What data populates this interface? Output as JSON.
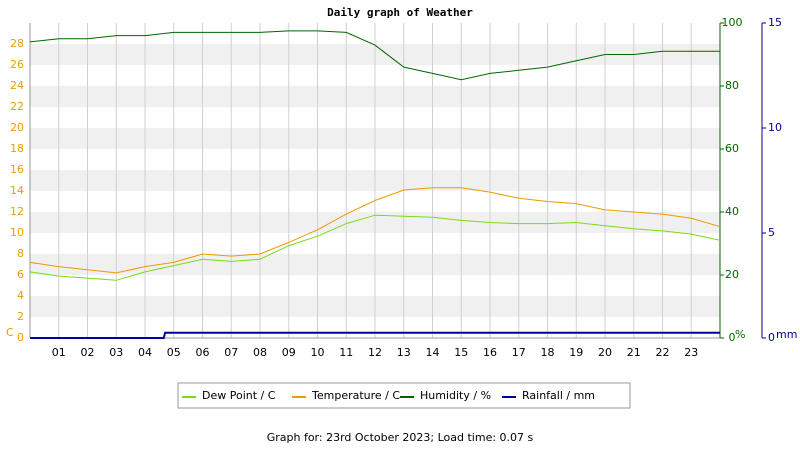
{
  "chart_data": {
    "type": "line",
    "title": "Daily graph of Weather",
    "footer": "Graph for: 23rd October 2023; Load time: 0.07 s",
    "ylabel": "C",
    "y2label": "%",
    "y3label": "mm",
    "x": [
      0,
      1,
      2,
      3,
      4,
      5,
      6,
      7,
      8,
      9,
      10,
      11,
      12,
      13,
      14,
      15,
      16,
      17,
      18,
      19,
      20,
      21,
      22,
      23,
      24
    ],
    "xlim": [
      0,
      24
    ],
    "xticks": [
      {
        "value": 1,
        "label": "01"
      },
      {
        "value": 2,
        "label": "02"
      },
      {
        "value": 3,
        "label": "03"
      },
      {
        "value": 4,
        "label": "04"
      },
      {
        "value": 5,
        "label": "05"
      },
      {
        "value": 6,
        "label": "06"
      },
      {
        "value": 7,
        "label": "07"
      },
      {
        "value": 8,
        "label": "08"
      },
      {
        "value": 9,
        "label": "09"
      },
      10,
      11,
      12,
      13,
      14,
      15,
      16,
      17,
      18,
      19,
      20,
      21,
      22,
      23
    ],
    "ylim": [
      0,
      30
    ],
    "yticks": [
      0,
      2,
      4,
      6,
      8,
      10,
      12,
      14,
      16,
      18,
      20,
      22,
      24,
      26,
      28
    ],
    "y2lim": [
      0,
      100
    ],
    "y2ticks": [
      0,
      20,
      40,
      60,
      80,
      100
    ],
    "y3lim": [
      0,
      15
    ],
    "y3ticks": [
      0,
      5,
      10,
      15
    ],
    "grid": true,
    "series": [
      {
        "name": "Dew Point / C",
        "color": "#77dd11",
        "values": [
          6.3,
          5.9,
          5.7,
          5.5,
          6.3,
          6.9,
          7.5,
          7.3,
          7.5,
          8.8,
          9.7,
          10.9,
          11.7,
          11.6,
          11.5,
          11.2,
          11.0,
          10.9,
          10.9,
          11.0,
          10.7,
          10.4,
          10.2,
          9.9,
          9.3
        ]
      },
      {
        "name": "Temperature / C",
        "color": "#ee9900",
        "values": [
          7.2,
          6.8,
          6.5,
          6.2,
          6.8,
          7.2,
          8.0,
          7.8,
          8.0,
          9.1,
          10.3,
          11.8,
          13.1,
          14.1,
          14.3,
          14.3,
          13.9,
          13.3,
          13.0,
          12.8,
          12.2,
          12.0,
          11.8,
          11.4,
          10.6
        ]
      },
      {
        "name": "Humidity / %",
        "color": "#006600",
        "axis": "y2",
        "values": [
          94,
          95,
          95,
          96,
          96,
          97,
          97,
          97,
          97,
          97.5,
          97.5,
          97,
          93,
          86,
          84,
          82,
          84,
          85,
          86,
          88,
          90,
          90,
          91,
          91,
          91
        ]
      },
      {
        "name": "Rainfall / mm",
        "color": "#000099",
        "axis": "y3",
        "x": [
          0,
          4.65,
          4.7,
          24
        ],
        "values": [
          0,
          0,
          0.25,
          0.25
        ]
      }
    ]
  }
}
